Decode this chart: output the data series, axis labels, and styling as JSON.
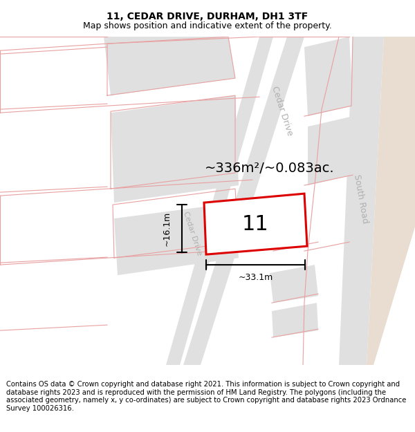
{
  "title": "11, CEDAR DRIVE, DURHAM, DH1 3TF",
  "subtitle": "Map shows position and indicative extent of the property.",
  "footer": "Contains OS data © Crown copyright and database right 2021. This information is subject to Crown copyright and database rights 2023 and is reproduced with the permission of HM Land Registry. The polygons (including the associated geometry, namely x, y co-ordinates) are subject to Crown copyright and database rights 2023 Ordnance Survey 100026316.",
  "area_text": "~336m²/~0.083ac.",
  "width_label": "~33.1m",
  "height_label": "~16.1m",
  "plot_number": "11",
  "road_label_cedar_upper": "Cedar Drive",
  "road_label_cedar_lower": "Cedar Drive",
  "road_label_south": "South Road",
  "bg_color": "#ffffff",
  "road_color": "#e0e0e0",
  "building_fill": "#e0e0e0",
  "building_edge_pink": "#e8a0a0",
  "plot_fill": "#ffffff",
  "plot_edge_color": "#dd0000",
  "tan_area_color": "#e8ddd0",
  "dim_color": "#000000",
  "pink_line_color": "#e8a0a0",
  "road_label_color": "#b0b0b0",
  "title_fontsize": 10,
  "subtitle_fontsize": 9,
  "footer_fontsize": 7.2,
  "area_fontsize": 14,
  "plot_num_fontsize": 22,
  "dim_fontsize": 9
}
